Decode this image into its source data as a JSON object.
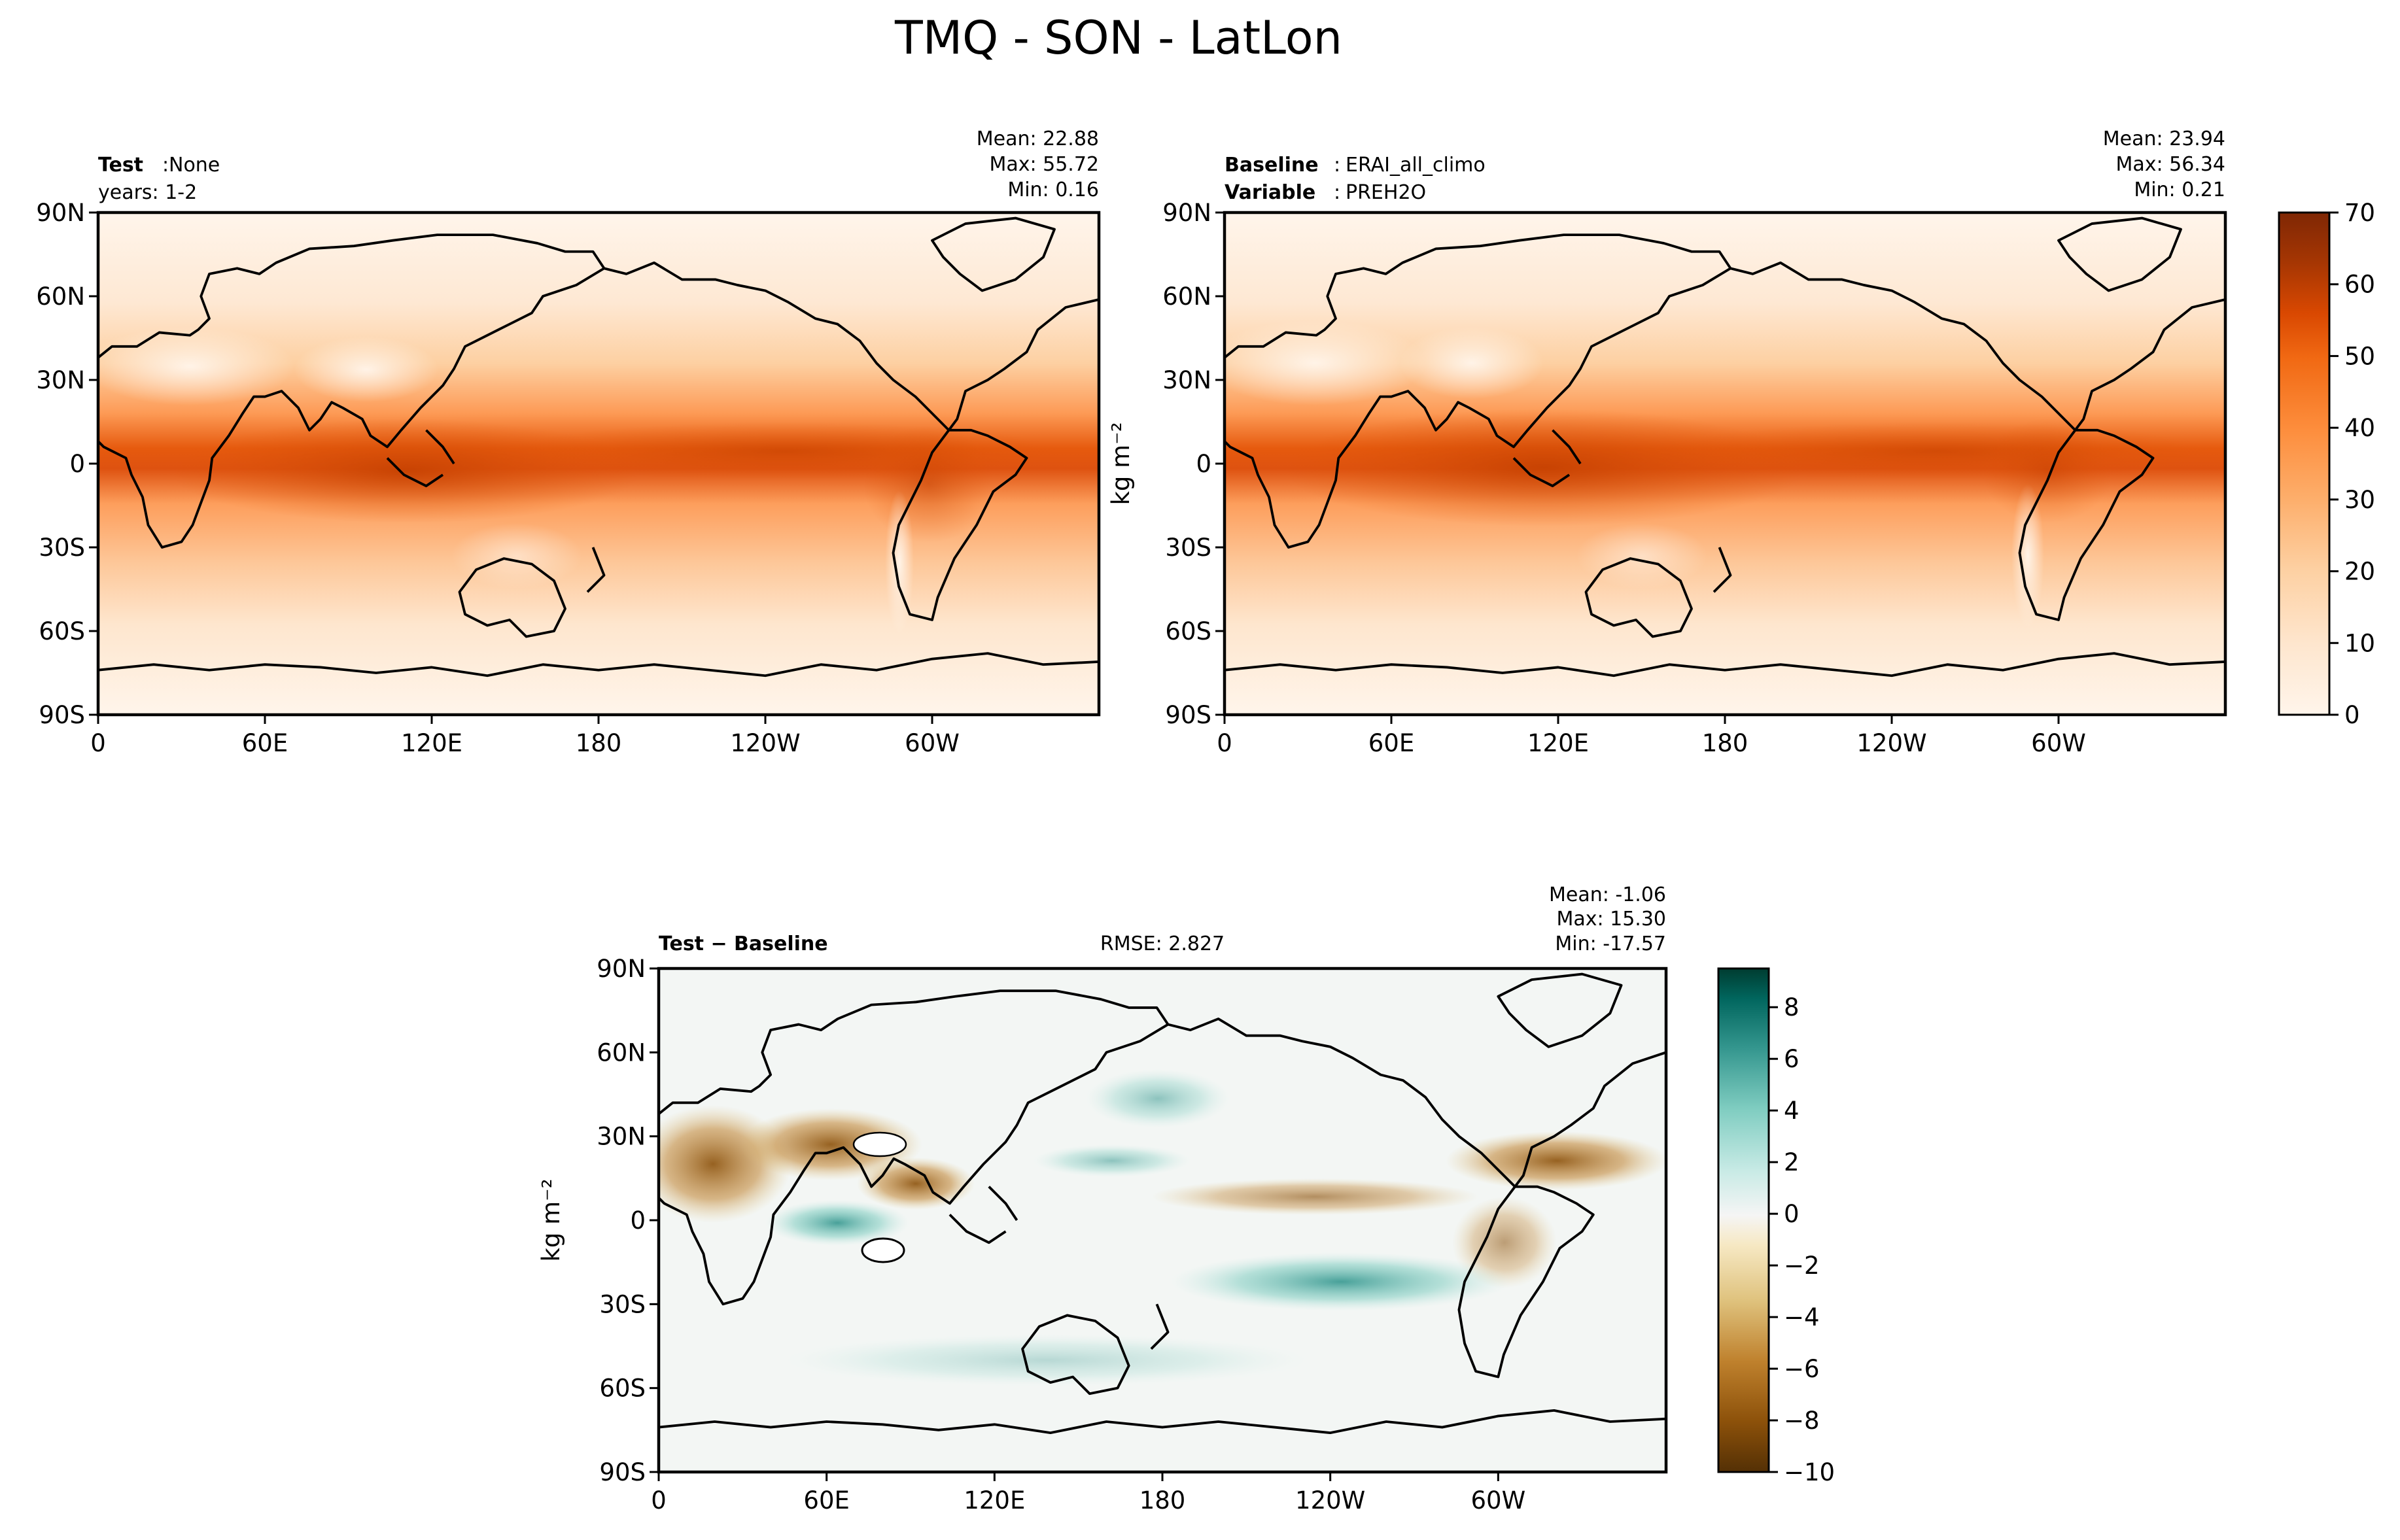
{
  "figure": {
    "title": "TMQ - SON - LatLon",
    "units_label": "kg m⁻²"
  },
  "chart_data": [
    {
      "type": "heatmap",
      "panel": "test",
      "left_label_key": "Test",
      "left_label_value": "None",
      "left_label_line2": "years: 1-2",
      "stats": [
        "Mean: 22.88",
        "Max: 55.72",
        "Min:  0.16"
      ],
      "x_ticks": [
        "0",
        "60E",
        "120E",
        "180",
        "120W",
        "60W"
      ],
      "y_ticks": [
        "90N",
        "60N",
        "30N",
        "0",
        "30S",
        "60S",
        "90S"
      ],
      "xlim": [
        0,
        360
      ],
      "ylim": [
        -90,
        90
      ],
      "field": "precipitable water, tropical maximum near equator"
    },
    {
      "type": "heatmap",
      "panel": "reference",
      "left_label_key": "Baseline",
      "left_label_value": "ERAI_all_climo",
      "left_label_key2": "Variable",
      "left_label_value2": "PREH2O",
      "stats": [
        "Mean: 23.94",
        "Max: 56.34",
        "Min:  0.21"
      ],
      "x_ticks": [
        "0",
        "60E",
        "120E",
        "180",
        "120W",
        "60W"
      ],
      "y_ticks": [
        "90N",
        "60N",
        "30N",
        "0",
        "30S",
        "60S",
        "90S"
      ],
      "ylabel": "kg m⁻²",
      "colorbar_ticks": [
        "0",
        "10",
        "20",
        "30",
        "40",
        "50",
        "60",
        "70"
      ],
      "colorbar_range": [
        0,
        70
      ],
      "colorbar_colors": [
        "#fff5eb",
        "#fee6ce",
        "#fdd0a2",
        "#fdae6b",
        "#fd8d3c",
        "#f16913",
        "#d94801",
        "#a63603",
        "#7f2704"
      ]
    },
    {
      "type": "heatmap",
      "panel": "difference",
      "left_label": "Test − Baseline",
      "center_label": "RMSE: 2.827",
      "stats": [
        "Mean: -1.06",
        "Max: 15.30",
        "Min: -17.57"
      ],
      "x_ticks": [
        "0",
        "60E",
        "120E",
        "180",
        "120W",
        "60W"
      ],
      "y_ticks": [
        "90N",
        "60N",
        "30N",
        "0",
        "30S",
        "60S",
        "90S"
      ],
      "ylabel": "kg m⁻²",
      "colorbar_ticks": [
        "8",
        "6",
        "4",
        "2",
        "0",
        "−2",
        "−4",
        "−6",
        "−8",
        "−10"
      ],
      "colorbar_range": [
        -10,
        9.5
      ],
      "colorbar_colors": [
        "#543005",
        "#8c510a",
        "#bf812d",
        "#dfc27d",
        "#f6e8c3",
        "#f5f5f5",
        "#c7eae5",
        "#80cdc1",
        "#35978f",
        "#01665e",
        "#003c30"
      ]
    }
  ]
}
